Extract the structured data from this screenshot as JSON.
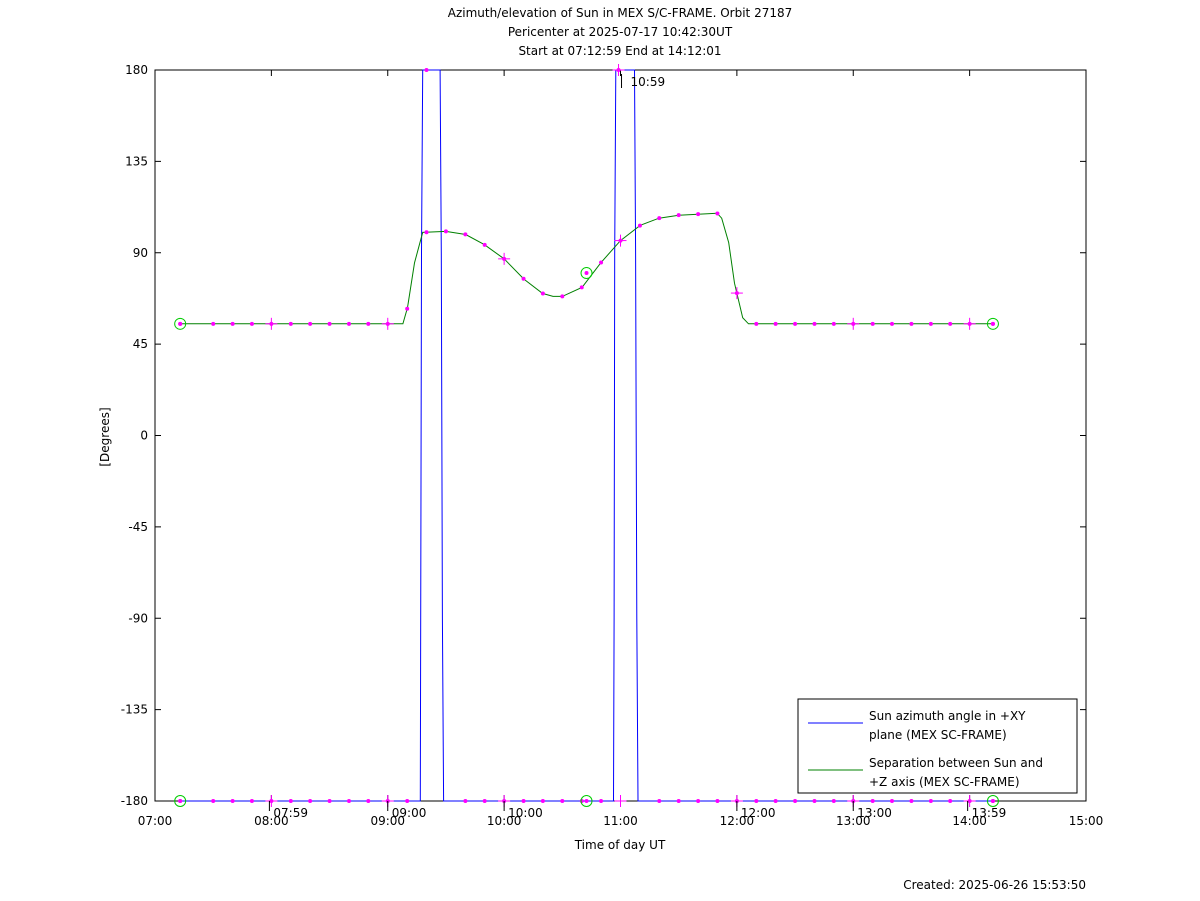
{
  "chart_data": {
    "type": "line",
    "title": [
      "Azimuth/elevation of Sun in MEX S/C-FRAME.  Orbit 27187",
      "Pericenter at 2025-07-17 10:42:30UT",
      "Start at 07:12:59 End at 14:12:01"
    ],
    "xlabel": "Time of day UT",
    "ylabel": "[Degrees]",
    "xlim": [
      7.0,
      15.0
    ],
    "ylim": [
      -180,
      180
    ],
    "x_ticks": [
      7,
      8,
      9,
      10,
      11,
      12,
      13,
      14,
      15
    ],
    "x_tick_labels": [
      "07:00",
      "08:00",
      "09:00",
      "10:00",
      "11:00",
      "12:00",
      "13:00",
      "14:00",
      "15:00"
    ],
    "y_ticks": [
      180,
      135,
      90,
      45,
      0,
      -45,
      -90,
      -135,
      -180
    ],
    "y_tick_labels": [
      "180",
      "135",
      "90",
      "45",
      "0",
      "-45",
      "-90",
      "-135",
      "-180"
    ],
    "grid": false,
    "legend_position": "bottom-right",
    "series": [
      {
        "name": "Sun azimuth angle in +XY plane (MEX SC-FRAME)",
        "legend_lines": [
          "Sun azimuth angle in +XY",
          "plane (MEX SC-FRAME)"
        ],
        "color": "#0000ff",
        "points": [
          [
            7.2164,
            -180
          ],
          [
            9.28,
            -180
          ],
          [
            9.283,
            -90
          ],
          [
            9.29,
            90
          ],
          [
            9.3,
            180
          ],
          [
            9.45,
            180
          ],
          [
            9.46,
            90
          ],
          [
            9.47,
            -90
          ],
          [
            9.48,
            -180
          ],
          [
            10.94,
            -180
          ],
          [
            10.945,
            -90
          ],
          [
            10.95,
            90
          ],
          [
            10.96,
            180
          ],
          [
            11.12,
            180
          ],
          [
            11.13,
            90
          ],
          [
            11.14,
            -90
          ],
          [
            11.15,
            -180
          ],
          [
            14.2003,
            -180
          ]
        ]
      },
      {
        "name": "Separation between Sun and +Z axis (MEX SC-FRAME)",
        "legend_lines": [
          "Separation between Sun and",
          "+Z axis (MEX SC-FRAME)"
        ],
        "color": "#008000",
        "points": [
          [
            7.2164,
            55
          ],
          [
            9.13,
            55
          ],
          [
            9.17,
            63
          ],
          [
            9.23,
            85
          ],
          [
            9.3,
            100
          ],
          [
            9.5,
            100.5
          ],
          [
            9.67,
            99
          ],
          [
            9.83,
            94
          ],
          [
            10.0,
            87
          ],
          [
            10.17,
            77
          ],
          [
            10.33,
            70
          ],
          [
            10.42,
            68.5
          ],
          [
            10.5,
            68.5
          ],
          [
            10.67,
            73
          ],
          [
            10.83,
            85
          ],
          [
            11.0,
            96
          ],
          [
            11.17,
            103.5
          ],
          [
            11.33,
            107
          ],
          [
            11.5,
            108.5
          ],
          [
            11.83,
            109.5
          ],
          [
            11.87,
            107
          ],
          [
            11.93,
            95
          ],
          [
            11.98,
            75
          ],
          [
            12.05,
            58
          ],
          [
            12.1,
            55
          ],
          [
            14.2003,
            55
          ]
        ]
      }
    ],
    "markers": {
      "color": "#ff00ff",
      "dot_times_sep": [
        7.2164,
        7.5,
        7.667,
        7.833,
        8.0,
        8.167,
        8.333,
        8.5,
        8.667,
        8.833,
        9.0,
        9.167,
        9.333,
        9.5,
        9.667,
        9.833,
        10.0,
        10.167,
        10.333,
        10.5,
        10.667,
        10.833,
        11.0,
        11.167,
        11.333,
        11.5,
        11.667,
        11.833,
        12.0,
        12.167,
        12.333,
        12.5,
        12.667,
        12.833,
        13.0,
        13.167,
        13.333,
        13.5,
        13.667,
        13.833,
        14.0,
        14.2003
      ],
      "dot_times_bottom": [
        7.2164,
        7.5,
        7.667,
        7.833,
        8.0,
        8.167,
        8.333,
        8.5,
        8.667,
        8.833,
        9.0,
        9.167,
        9.667,
        9.833,
        10.0,
        10.167,
        10.333,
        10.5,
        10.667,
        10.833,
        11.333,
        11.5,
        11.667,
        11.833,
        12.0,
        12.167,
        12.333,
        12.5,
        12.667,
        12.833,
        13.0,
        13.167,
        13.333,
        13.5,
        13.667,
        13.833,
        14.0,
        14.2003
      ],
      "plus_times_sep": [
        8.0,
        9.0,
        10.0,
        11.0,
        12.0,
        13.0,
        14.0
      ],
      "plus_times_bottom": [
        8.0,
        9.0,
        10.0,
        11.0,
        12.0,
        13.0,
        14.0
      ],
      "top_dots": [
        [
          9.333,
          180
        ],
        [
          10.983,
          180
        ]
      ],
      "top_plus": [
        [
          10.983,
          180
        ]
      ],
      "circles": [
        [
          7.2164,
          55
        ],
        [
          10.708,
          80
        ],
        [
          14.2003,
          55
        ],
        [
          7.2164,
          -180
        ],
        [
          10.708,
          -180
        ],
        [
          14.2003,
          -180
        ]
      ]
    },
    "annotations": [
      {
        "text": "07:59",
        "x": 7.983,
        "y": -180,
        "place": "bottom"
      },
      {
        "text": "09:00",
        "x": 9.0,
        "y": -180,
        "place": "bottom"
      },
      {
        "text": "10:00",
        "x": 10.0,
        "y": -180,
        "place": "bottom"
      },
      {
        "text": "12:00",
        "x": 12.0,
        "y": -180,
        "place": "bottom"
      },
      {
        "text": "13:00",
        "x": 13.0,
        "y": -180,
        "place": "bottom"
      },
      {
        "text": "13:59",
        "x": 13.983,
        "y": -180,
        "place": "bottom"
      },
      {
        "text": "10:59",
        "x": 10.983,
        "y": 180,
        "place": "top"
      }
    ],
    "footer": "Created: 2025-06-26 15:53:50"
  }
}
